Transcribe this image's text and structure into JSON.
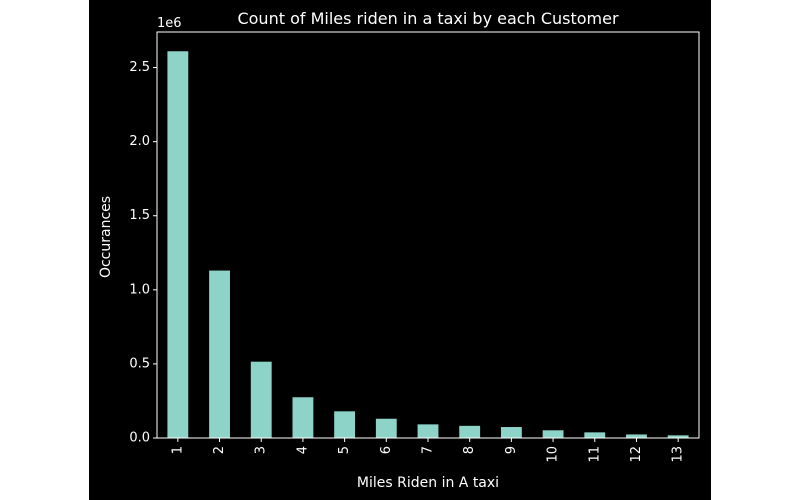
{
  "chart_data": {
    "type": "bar",
    "title": "Count of Miles riden in a taxi by each Customer",
    "xlabel": "Miles Riden in A taxi",
    "ylabel": "Occurances",
    "offset_text": "1e6",
    "categories": [
      "1",
      "2",
      "3",
      "4",
      "5",
      "6",
      "7",
      "8",
      "9",
      "10",
      "11",
      "12",
      "13"
    ],
    "values": [
      2610000,
      1130000,
      515000,
      275000,
      180000,
      130000,
      92000,
      82000,
      74000,
      52000,
      38000,
      24000,
      18000
    ],
    "ylim": [
      0,
      2740000
    ],
    "yticks": [
      0,
      500000,
      1000000,
      1500000,
      2000000,
      2500000
    ],
    "ytick_labels": [
      "0.0",
      "0.5",
      "1.0",
      "1.5",
      "2.0",
      "2.5"
    ],
    "bar_color": "#8dd3c7",
    "background": "#000000",
    "foreground": "#ffffff",
    "grid": false,
    "legend": "none"
  }
}
